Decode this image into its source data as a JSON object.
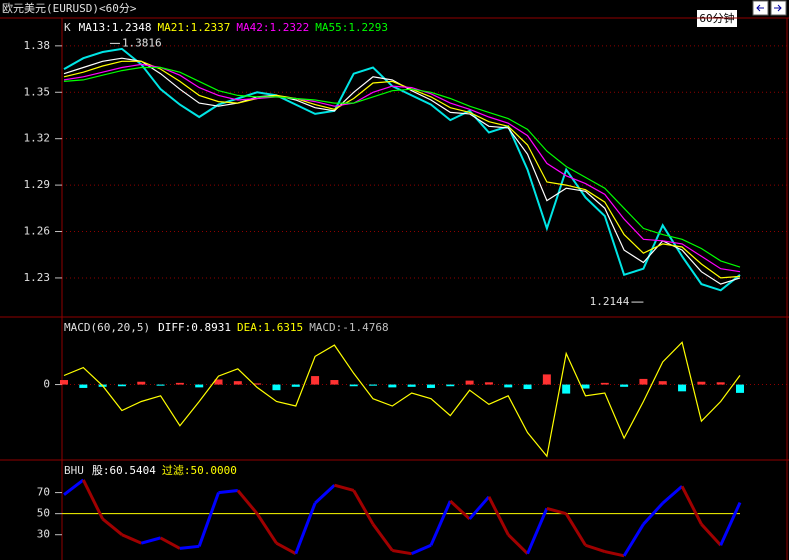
{
  "header": {
    "title": "欧元美元(EURUSD)<60分>",
    "period_button": "60分钟"
  },
  "chart_data": [
    {
      "type": "line",
      "label": "K",
      "ylim": [
        1.2054,
        1.398
      ],
      "yticks": [
        1.23,
        1.26,
        1.29,
        1.32,
        1.35,
        1.38
      ],
      "grid": true,
      "series": [
        {
          "color": "#00e5e5",
          "values": [
            1.365,
            1.372,
            1.376,
            1.378,
            1.368,
            1.352,
            1.342,
            1.334,
            1.342,
            1.346,
            1.35,
            1.348,
            1.342,
            1.336,
            1.338,
            1.362,
            1.366,
            1.354,
            1.348,
            1.342,
            1.332,
            1.338,
            1.324,
            1.328,
            1.3,
            1.262,
            1.3,
            1.282,
            1.27,
            1.232,
            1.236,
            1.264,
            1.244,
            1.226,
            1.222,
            1.232
          ]
        },
        {
          "name": "MA13:1.2348",
          "color": "#ffffff",
          "values": [
            1.362,
            1.366,
            1.37,
            1.372,
            1.37,
            1.362,
            1.352,
            1.343,
            1.341,
            1.343,
            1.347,
            1.348,
            1.345,
            1.34,
            1.338,
            1.35,
            1.36,
            1.358,
            1.351,
            1.345,
            1.337,
            1.336,
            1.328,
            1.327,
            1.31,
            1.28,
            1.288,
            1.286,
            1.275,
            1.248,
            1.24,
            1.254,
            1.248,
            1.234,
            1.226,
            1.23
          ]
        },
        {
          "name": "MA21:1.2337",
          "color": "#ffff00",
          "values": [
            1.36,
            1.363,
            1.367,
            1.37,
            1.37,
            1.365,
            1.357,
            1.348,
            1.344,
            1.343,
            1.346,
            1.348,
            1.346,
            1.342,
            1.339,
            1.346,
            1.356,
            1.357,
            1.352,
            1.347,
            1.34,
            1.337,
            1.331,
            1.328,
            1.316,
            1.292,
            1.29,
            1.287,
            1.279,
            1.258,
            1.246,
            1.252,
            1.25,
            1.239,
            1.23,
            1.231
          ]
        },
        {
          "name": "MA42:1.2322",
          "color": "#ff00ff",
          "values": [
            1.358,
            1.36,
            1.363,
            1.366,
            1.368,
            1.366,
            1.361,
            1.353,
            1.348,
            1.345,
            1.346,
            1.347,
            1.346,
            1.344,
            1.341,
            1.343,
            1.35,
            1.354,
            1.353,
            1.349,
            1.343,
            1.339,
            1.334,
            1.33,
            1.322,
            1.304,
            1.296,
            1.291,
            1.284,
            1.268,
            1.255,
            1.254,
            1.252,
            1.244,
            1.236,
            1.234
          ]
        },
        {
          "name": "MA55:1.2293",
          "color": "#00ff00",
          "values": [
            1.357,
            1.358,
            1.361,
            1.364,
            1.366,
            1.366,
            1.363,
            1.357,
            1.351,
            1.348,
            1.347,
            1.347,
            1.346,
            1.345,
            1.343,
            1.343,
            1.347,
            1.351,
            1.352,
            1.35,
            1.346,
            1.341,
            1.337,
            1.333,
            1.326,
            1.312,
            1.302,
            1.295,
            1.288,
            1.275,
            1.262,
            1.258,
            1.255,
            1.249,
            1.241,
            1.237
          ]
        }
      ],
      "annotations": [
        {
          "value": 1.3816,
          "index": 3
        },
        {
          "value": 1.2144,
          "index": 30
        }
      ]
    },
    {
      "type": "macd",
      "label": "MACD(60,20,5)",
      "ylim": [
        -13.2,
        11.8
      ],
      "yticks": [
        0
      ],
      "grid": true,
      "series": [
        {
          "name": "DIFF:0.8931",
          "color": "#ffffff"
        },
        {
          "name": "DEA:1.6315",
          "color": "#ffff00",
          "values": [
            1.6,
            3.0,
            -0.2,
            -4.6,
            -3.0,
            -2.0,
            -7.3,
            -3.0,
            1.5,
            2.8,
            -0.5,
            -3.0,
            -3.8,
            5.0,
            7.0,
            2.0,
            -2.5,
            -3.8,
            -1.5,
            -2.5,
            -5.5,
            -1.0,
            -3.5,
            -2.0,
            -8.5,
            -12.7,
            5.5,
            -2.0,
            -1.5,
            -9.5,
            -3.0,
            4.0,
            7.5,
            -6.5,
            -3.0,
            1.6315
          ]
        },
        {
          "name": "MACD:-1.4768",
          "color": "#c0c0c0",
          "type": "bar",
          "up_color": "#ff3232",
          "down_color": "#00ffff",
          "values": [
            0.8,
            -0.6,
            -0.4,
            -0.3,
            0.5,
            -0.2,
            0.3,
            -0.5,
            0.9,
            0.6,
            0.2,
            -1.0,
            -0.4,
            1.5,
            0.8,
            -0.3,
            -0.2,
            -0.5,
            -0.4,
            -0.6,
            -0.3,
            0.7,
            0.4,
            -0.5,
            -0.8,
            1.8,
            -1.6,
            -0.7,
            0.3,
            -0.4,
            1.0,
            0.6,
            -1.2,
            0.5,
            0.4,
            -1.4768
          ]
        }
      ]
    },
    {
      "type": "line",
      "label": "BHU",
      "ylim": [
        6,
        100
      ],
      "yticks": [
        30,
        50,
        70
      ],
      "grid": false,
      "series": [
        {
          "name": "股:60.5404",
          "color": "#ffffff",
          "rise_color": "#0000ff",
          "fall_color": "#a00000",
          "values": [
            68,
            82,
            45,
            30,
            22,
            27,
            17,
            19,
            70,
            72,
            50,
            22,
            12,
            60,
            77,
            72,
            40,
            15,
            12,
            20,
            62,
            45,
            66,
            30,
            12,
            55,
            50,
            20,
            14,
            10,
            40,
            60,
            76,
            40,
            20,
            60.5404
          ]
        }
      ],
      "threshold": {
        "value": 50,
        "label": "过滤:50.0000",
        "color": "#ffff00"
      }
    }
  ]
}
